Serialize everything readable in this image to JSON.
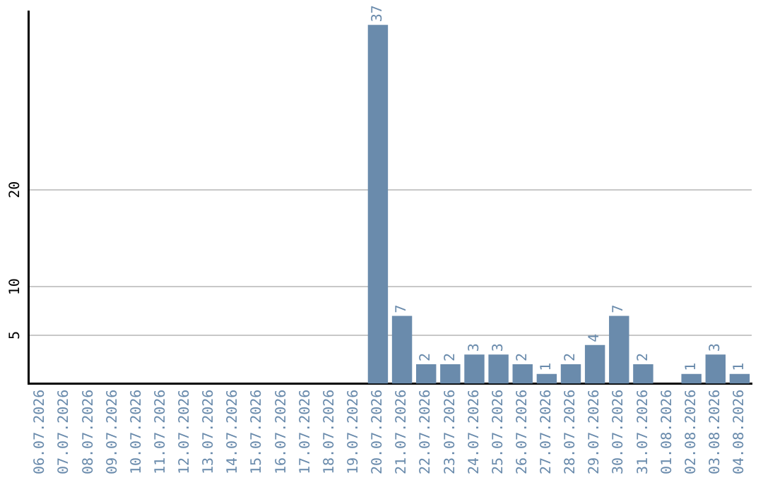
{
  "chart_data": {
    "type": "bar",
    "categories": [
      "06.07.2026",
      "07.07.2026",
      "08.07.2026",
      "09.07.2026",
      "10.07.2026",
      "11.07.2026",
      "12.07.2026",
      "13.07.2026",
      "14.07.2026",
      "15.07.2026",
      "16.07.2026",
      "17.07.2026",
      "18.07.2026",
      "19.07.2026",
      "20.07.2026",
      "21.07.2026",
      "22.07.2026",
      "23.07.2026",
      "24.07.2026",
      "25.07.2026",
      "26.07.2026",
      "27.07.2026",
      "28.07.2026",
      "29.07.2026",
      "30.07.2026",
      "31.07.2026",
      "01.08.2026",
      "02.08.2026",
      "03.08.2026",
      "04.08.2026"
    ],
    "values": [
      0,
      0,
      0,
      0,
      0,
      0,
      0,
      0,
      0,
      0,
      0,
      0,
      0,
      0,
      37,
      7,
      2,
      2,
      3,
      3,
      2,
      1,
      2,
      4,
      7,
      2,
      0,
      1,
      3,
      1
    ],
    "value_labels": [
      null,
      null,
      null,
      null,
      null,
      null,
      null,
      null,
      null,
      null,
      null,
      null,
      null,
      null,
      "37",
      "7",
      "2",
      "2",
      "3",
      "3",
      "2",
      "1",
      "2",
      "4",
      "7",
      "2",
      null,
      "1",
      "3",
      "1"
    ],
    "color": "#6a8bac",
    "ylim": [
      0,
      38.4
    ],
    "yticks": [
      5,
      10,
      20
    ],
    "grid": "y",
    "legend": false
  }
}
